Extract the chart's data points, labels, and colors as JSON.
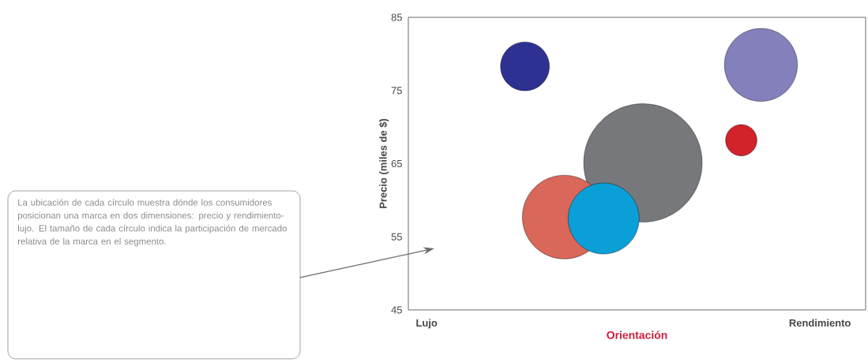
{
  "chart_data": {
    "type": "bubble",
    "xlabel": "Orientación",
    "ylabel": "Precio (miles de $)",
    "annotations": [
      "La ubicación de cada círculo muestra dónde los consumidores posicionan una marca en dos dimensiones: precio y rendimiento-lujo. El tamaño de cada círculo indica la participación de mercado relativa de la marca en el segmento."
    ],
    "categories": [
      "Lujo",
      null,
      null,
      null,
      null,
      null,
      null,
      null,
      null,
      null,
      null,
      null,
      null,
      null,
      null,
      null,
      null,
      null,
      null,
      null,
      "Rendimiento"
    ],
    "values": [
      null,
      null,
      null,
      null,
      null,
      78.3,
      null,
      57.7,
      null,
      57.5,
      null,
      65.1,
      null,
      null,
      null,
      null,
      68.2,
      78.5,
      null,
      null,
      null
    ],
    "sizes": [
      null,
      null,
      null,
      null,
      null,
      0.17,
      null,
      0.5,
      null,
      0.36,
      null,
      1,
      null,
      null,
      null,
      null,
      0.07,
      0.38,
      null,
      null,
      null
    ],
    "colors": [
      null,
      null,
      null,
      null,
      null,
      "#2e3192",
      null,
      "#d9675a",
      null,
      "#0b9fd8",
      null,
      "#77787b",
      null,
      null,
      null,
      null,
      "#d2232a",
      "#8480bb",
      null,
      null,
      null
    ],
    "ylim": [
      45,
      85
    ],
    "yticks": [
      45,
      55,
      65,
      75,
      85
    ],
    "grid": false
  }
}
